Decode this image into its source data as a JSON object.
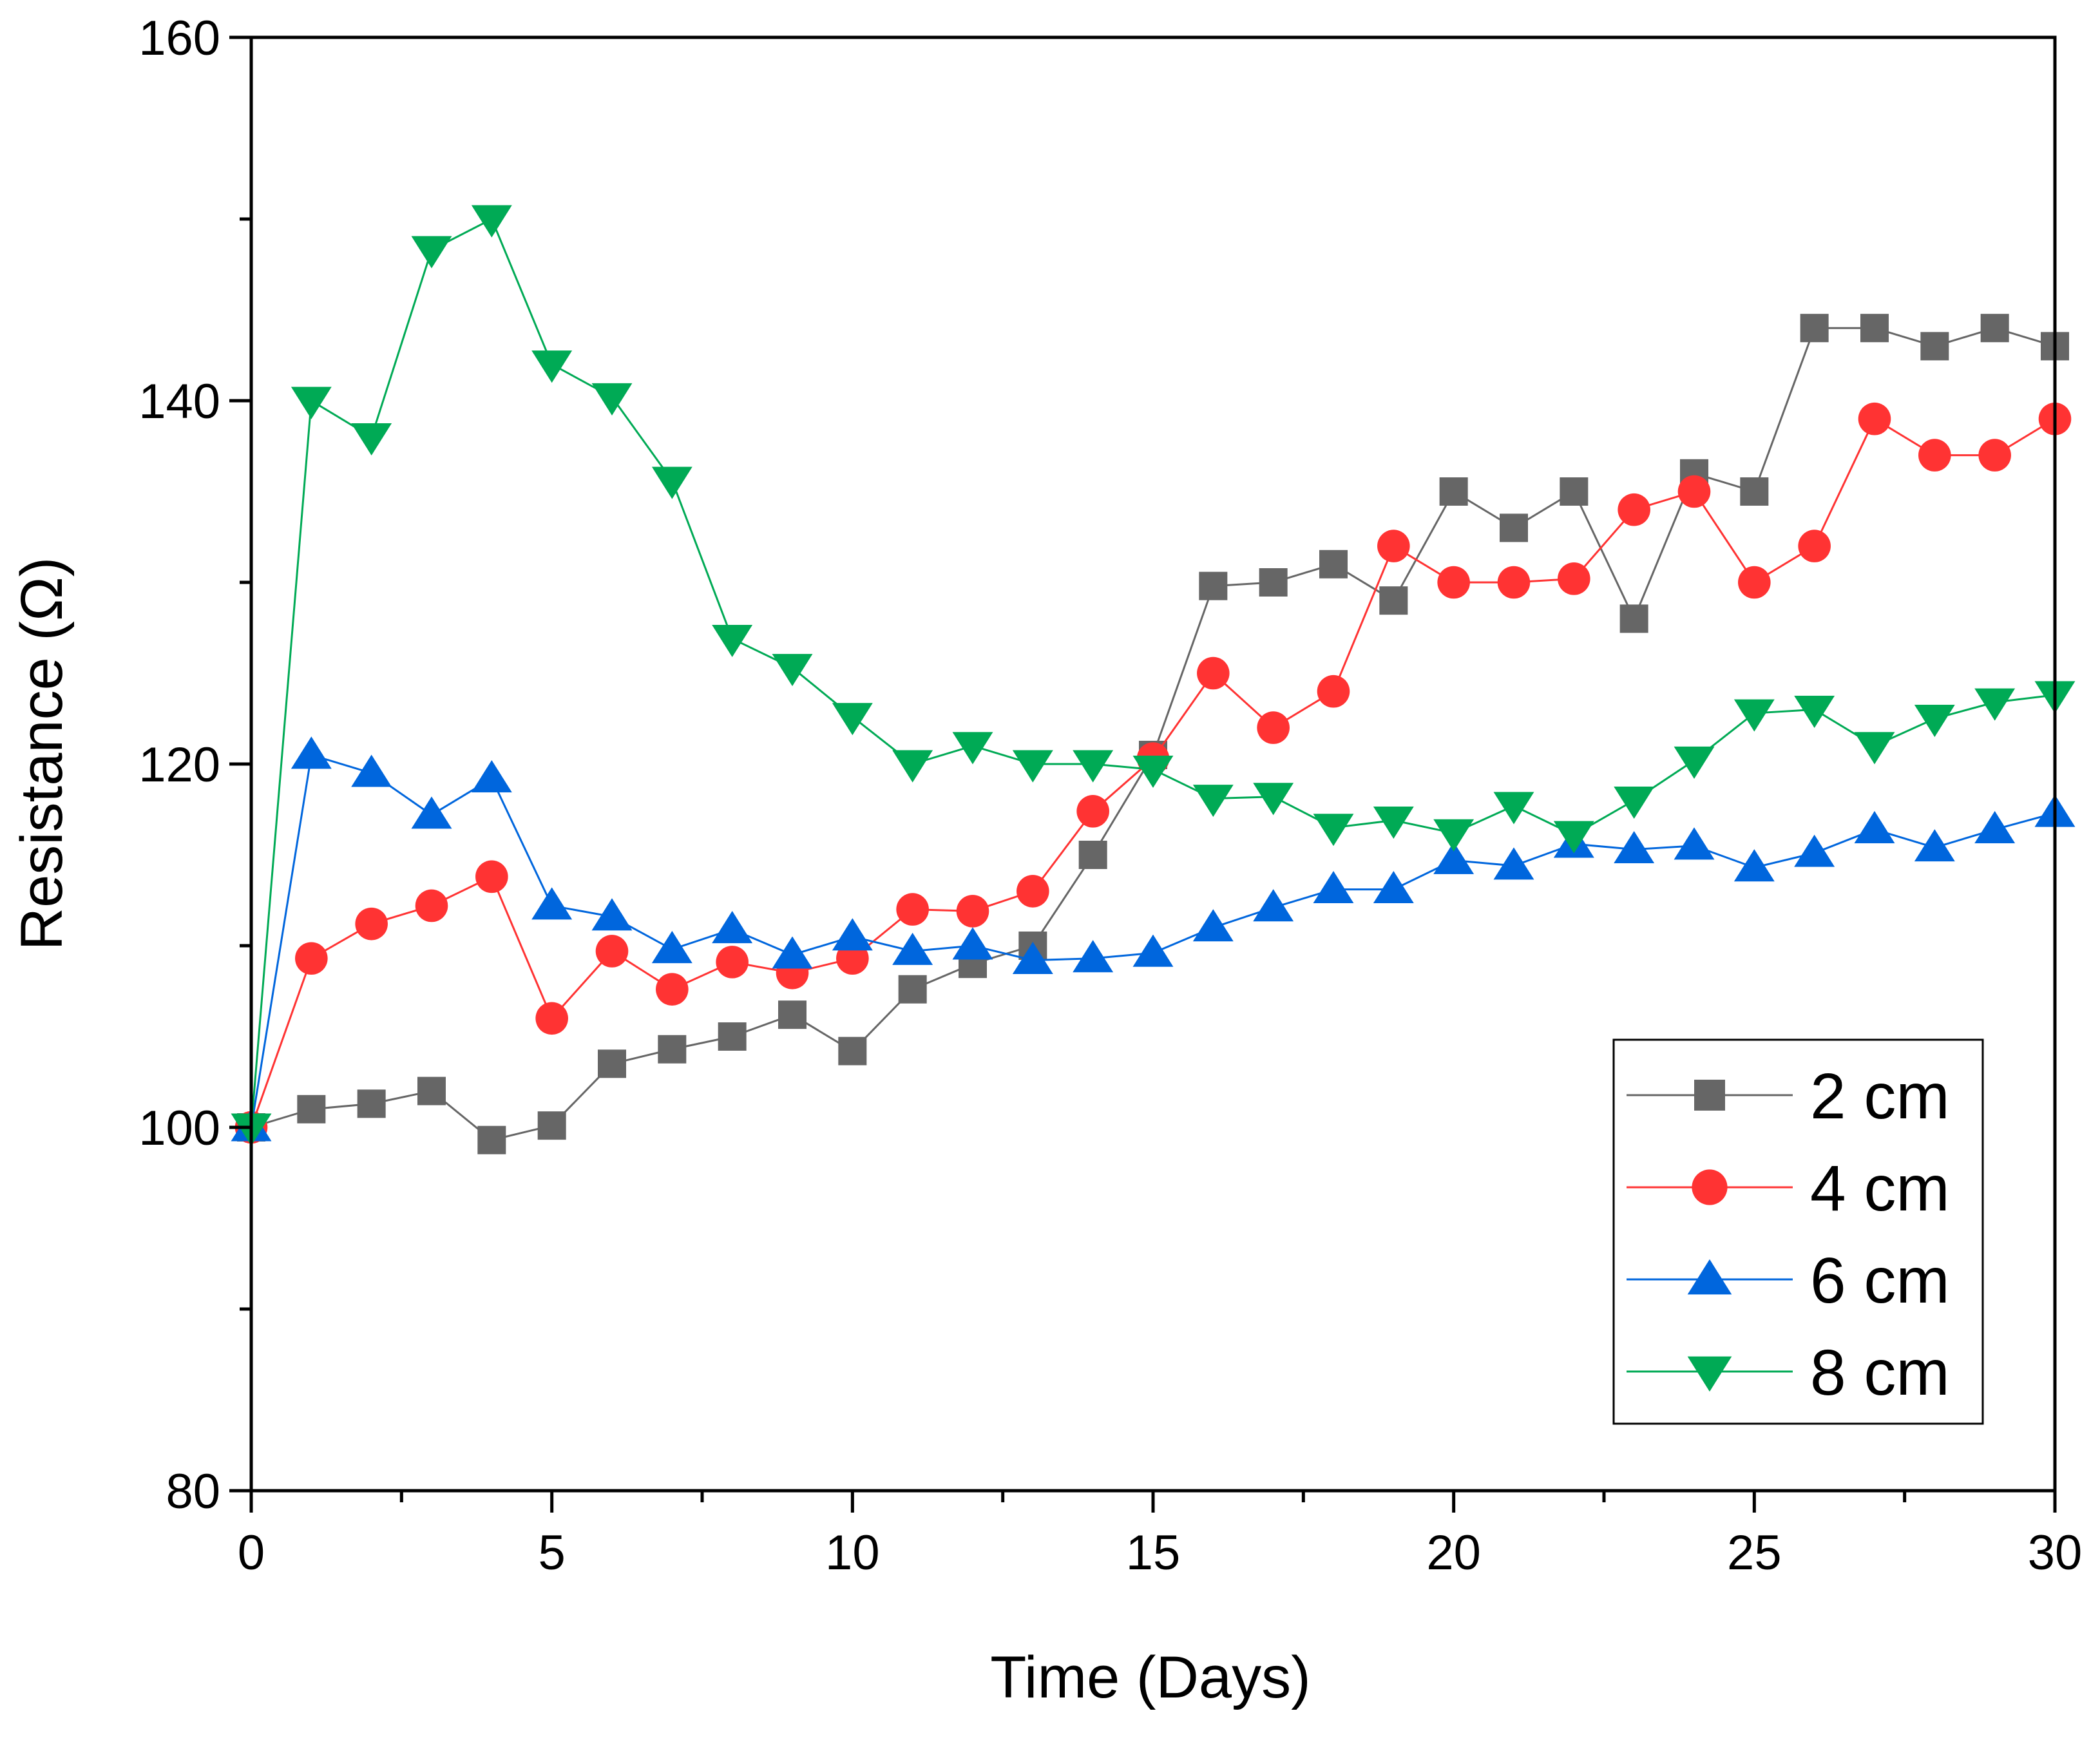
{
  "chart_data": {
    "type": "line",
    "title": "",
    "xlabel": "Time (Days)",
    "ylabel": "Resistance (Ω)",
    "xlim": [
      0,
      30
    ],
    "ylim": [
      80,
      160
    ],
    "xticks": [
      0,
      5,
      10,
      15,
      20,
      25,
      30
    ],
    "xtick_labels": [
      "0",
      "5",
      "10",
      "15",
      "20",
      "25",
      "30"
    ],
    "yticks": [
      80,
      100,
      120,
      140,
      160
    ],
    "ytick_labels": [
      "80",
      "100",
      "120",
      "140",
      "160"
    ],
    "grid": false,
    "legend_position": "bottom-right",
    "x": [
      0,
      1,
      2,
      3,
      4,
      5,
      6,
      7,
      8,
      9,
      10,
      11,
      12,
      13,
      14,
      15,
      16,
      17,
      18,
      19,
      20,
      21,
      22,
      23,
      24,
      25,
      26,
      27,
      28,
      29,
      30
    ],
    "series": [
      {
        "name": "2 cm",
        "marker": "square",
        "color": "#666666",
        "values": [
          100,
          101,
          101.3,
          102,
          99.3,
          100.1,
          103.5,
          104.3,
          105,
          106.2,
          104.2,
          107.6,
          109,
          110,
          115,
          120.5,
          129.8,
          130,
          131,
          129,
          135,
          133,
          135,
          128,
          136,
          135,
          144,
          144,
          143,
          144,
          143
        ]
      },
      {
        "name": "4 cm",
        "marker": "circle",
        "color": "#ff3333",
        "values": [
          100,
          109.3,
          111.2,
          112.2,
          113.8,
          106,
          109.7,
          107.6,
          109.1,
          108.5,
          109.3,
          112,
          111.9,
          113,
          117.4,
          120.3,
          125,
          122,
          124,
          132,
          130,
          130,
          130.2,
          134,
          135,
          130,
          132,
          139,
          137,
          137,
          139
        ]
      },
      {
        "name": "6 cm",
        "marker": "triangle-up",
        "color": "#0066dd",
        "values": [
          100,
          120.5,
          119.5,
          117.2,
          119.2,
          112.2,
          111.6,
          109.8,
          110.9,
          109.5,
          110.5,
          109.7,
          110,
          109.2,
          109.3,
          109.6,
          111,
          112.1,
          113.1,
          113.1,
          114.7,
          114.4,
          115.6,
          115.3,
          115.5,
          114.3,
          115.1,
          116.4,
          115.4,
          116.4,
          117.3
        ]
      },
      {
        "name": "8 cm",
        "marker": "triangle-down",
        "color": "#00aa55",
        "values": [
          100,
          140,
          138,
          148.3,
          150,
          142,
          140.2,
          135.6,
          126.9,
          125.3,
          122.6,
          120,
          121,
          120,
          120,
          119.7,
          118.1,
          118.2,
          116.5,
          116.9,
          116.2,
          117.7,
          116.1,
          118,
          120.2,
          122.8,
          123,
          121,
          122.5,
          123.4,
          123.8
        ]
      }
    ]
  }
}
